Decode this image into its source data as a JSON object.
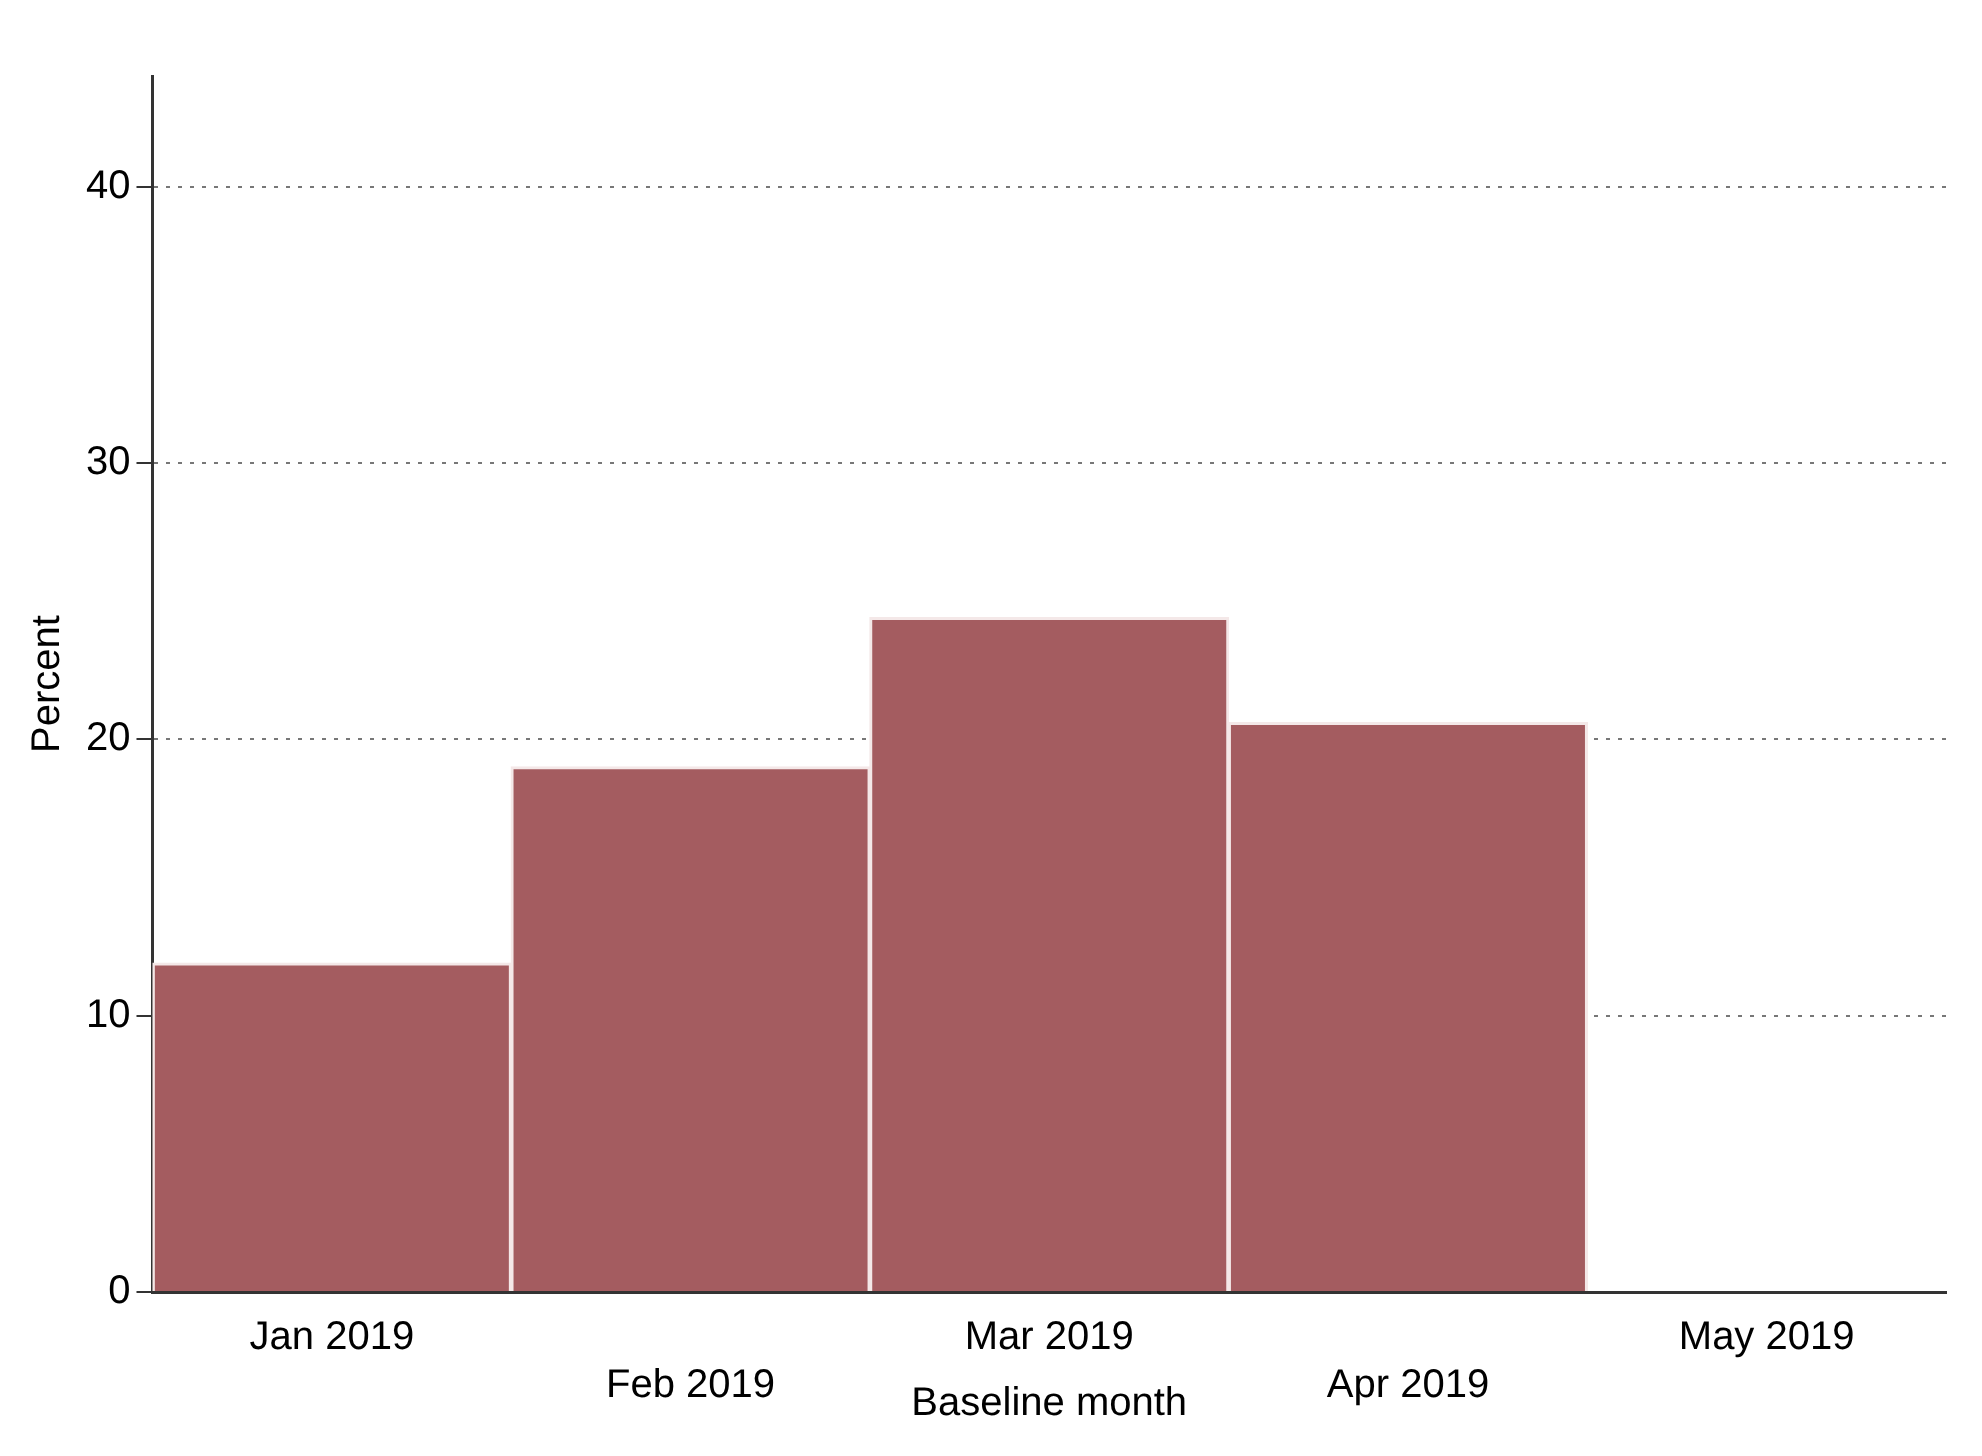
{
  "chart_data": {
    "type": "bar",
    "xlabel": "Baseline month",
    "ylabel": "Percent",
    "categories": [
      "Jan 2019",
      "Feb 2019",
      "Mar 2019",
      "Apr 2019",
      "May 2019"
    ],
    "values": [
      11.9,
      19.0,
      24.4,
      20.6,
      0
    ],
    "color": "#a45c60",
    "ylim": [
      0,
      44
    ],
    "yticks": [
      0,
      10,
      20,
      30,
      40
    ],
    "grid": "y",
    "legend": false
  }
}
